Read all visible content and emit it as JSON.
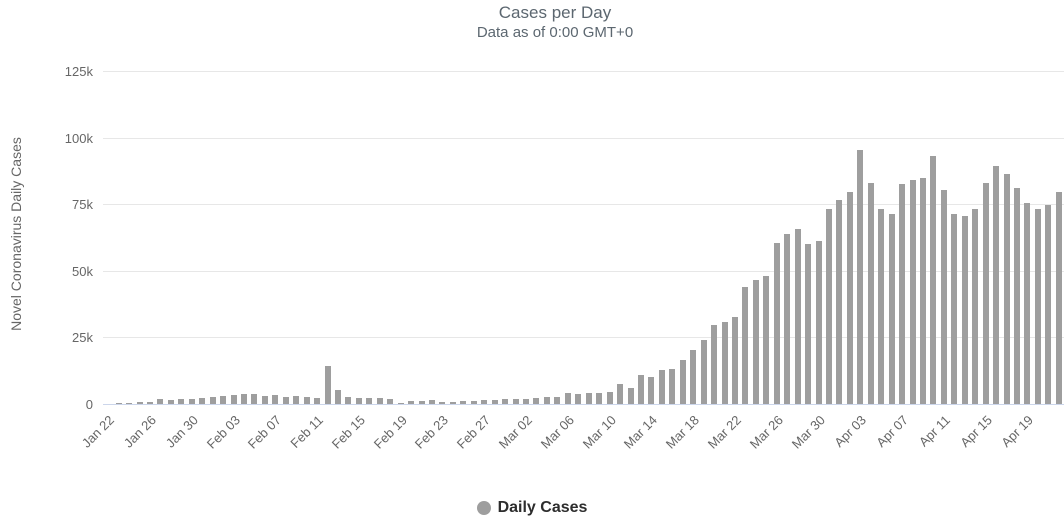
{
  "header": {
    "title": "Cases per Day",
    "subtitle": "Data as of 0:00 GMT+0"
  },
  "y_axis": {
    "title": "Novel Coronavirus Daily Cases",
    "tick_labels": [
      "0",
      "25k",
      "50k",
      "75k",
      "100k",
      "125k"
    ],
    "tick_step": 25000,
    "max": 125000
  },
  "x_axis": {
    "tick_every": 4
  },
  "legend": {
    "label": "Daily Cases"
  },
  "colors": {
    "bar": "#9e9e9e",
    "grid": "#e7e7e7",
    "axis_line": "#ccd6eb",
    "title_text": "#5c6770",
    "tick_label": "#666666",
    "legend_marker": "#9e9e9e",
    "legend_text": "#2d2d2d"
  },
  "chart_data": {
    "type": "bar",
    "title": "Cases per Day",
    "subtitle": "Data as of 0:00 GMT+0",
    "xlabel": "",
    "ylabel": "Novel Coronavirus Daily Cases",
    "ylim": [
      0,
      125000
    ],
    "grid": true,
    "legend_position": "bottom",
    "series_name": "Daily Cases",
    "categories": [
      "Jan 22",
      "Jan 23",
      "Jan 24",
      "Jan 25",
      "Jan 26",
      "Jan 27",
      "Jan 28",
      "Jan 29",
      "Jan 30",
      "Jan 31",
      "Feb 01",
      "Feb 02",
      "Feb 03",
      "Feb 04",
      "Feb 05",
      "Feb 06",
      "Feb 07",
      "Feb 08",
      "Feb 09",
      "Feb 10",
      "Feb 11",
      "Feb 12",
      "Feb 13",
      "Feb 14",
      "Feb 15",
      "Feb 16",
      "Feb 17",
      "Feb 18",
      "Feb 19",
      "Feb 20",
      "Feb 21",
      "Feb 22",
      "Feb 23",
      "Feb 24",
      "Feb 25",
      "Feb 26",
      "Feb 27",
      "Feb 28",
      "Feb 29",
      "Mar 01",
      "Mar 02",
      "Mar 03",
      "Mar 04",
      "Mar 05",
      "Mar 06",
      "Mar 07",
      "Mar 08",
      "Mar 09",
      "Mar 10",
      "Mar 11",
      "Mar 12",
      "Mar 13",
      "Mar 14",
      "Mar 15",
      "Mar 16",
      "Mar 17",
      "Mar 18",
      "Mar 19",
      "Mar 20",
      "Mar 21",
      "Mar 22",
      "Mar 23",
      "Mar 24",
      "Mar 25",
      "Mar 26",
      "Mar 27",
      "Mar 28",
      "Mar 29",
      "Mar 30",
      "Mar 31",
      "Apr 01",
      "Apr 02",
      "Apr 03",
      "Apr 04",
      "Apr 05",
      "Apr 06",
      "Apr 07",
      "Apr 08",
      "Apr 09",
      "Apr 10",
      "Apr 11",
      "Apr 12",
      "Apr 13",
      "Apr 14",
      "Apr 15",
      "Apr 16",
      "Apr 17",
      "Apr 18",
      "Apr 19",
      "Apr 20",
      "Apr 21",
      "Apr 22"
    ],
    "values": [
      0,
      265,
      468,
      701,
      787,
      1781,
      1477,
      1755,
      2006,
      2127,
      2603,
      2836,
      3239,
      3927,
      3723,
      3163,
      3437,
      2676,
      3016,
      2566,
      2068,
      14108,
      5098,
      2641,
      2181,
      2077,
      2130,
      1907,
      558,
      1036,
      1111,
      1380,
      576,
      908,
      943,
      1125,
      1410,
      1467,
      1775,
      1823,
      1806,
      2378,
      2492,
      2766,
      3963,
      3737,
      3989,
      4236,
      4580,
      7488,
      6180,
      10839,
      10259,
      12771,
      13286,
      16556,
      20304,
      24167,
      29574,
      30816,
      32554,
      43800,
      46400,
      48200,
      60600,
      64000,
      65800,
      60000,
      61200,
      73100,
      76500,
      79400,
      95200,
      83100,
      73100,
      71300,
      82400,
      84200,
      84800,
      93000,
      80200,
      71200,
      70600,
      73100,
      83100,
      89300,
      86200,
      81200,
      75600,
      73100,
      74700,
      79600
    ]
  }
}
